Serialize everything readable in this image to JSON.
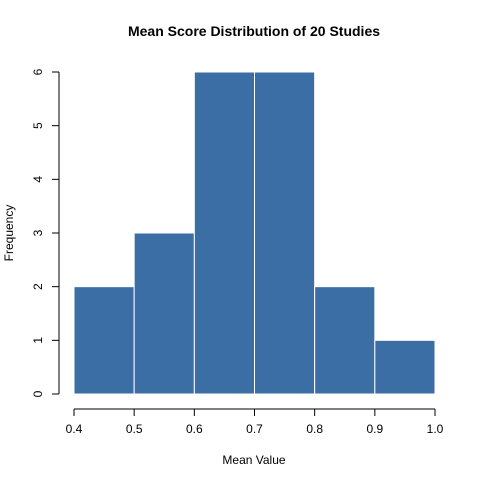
{
  "chart_data": {
    "type": "bar",
    "title": "Mean Score Distribution of 20 Studies",
    "xlabel": "Mean Value",
    "ylabel": "Frequency",
    "bins": [
      {
        "start": 0.4,
        "end": 0.5,
        "count": 2
      },
      {
        "start": 0.5,
        "end": 0.6,
        "count": 3
      },
      {
        "start": 0.6,
        "end": 0.7,
        "count": 6
      },
      {
        "start": 0.7,
        "end": 0.8,
        "count": 6
      },
      {
        "start": 0.8,
        "end": 0.9,
        "count": 2
      },
      {
        "start": 0.9,
        "end": 1.0,
        "count": 1
      }
    ],
    "xlim": [
      0.4,
      1.0
    ],
    "ylim": [
      0,
      6
    ],
    "x_ticks": [
      "0.4",
      "0.5",
      "0.6",
      "0.7",
      "0.8",
      "0.9",
      "1.0"
    ],
    "y_ticks": [
      "0",
      "1",
      "2",
      "3",
      "4",
      "5",
      "6"
    ],
    "bar_color": "#3a6ea5",
    "bar_border_color": "#ffffff",
    "grid": false
  }
}
